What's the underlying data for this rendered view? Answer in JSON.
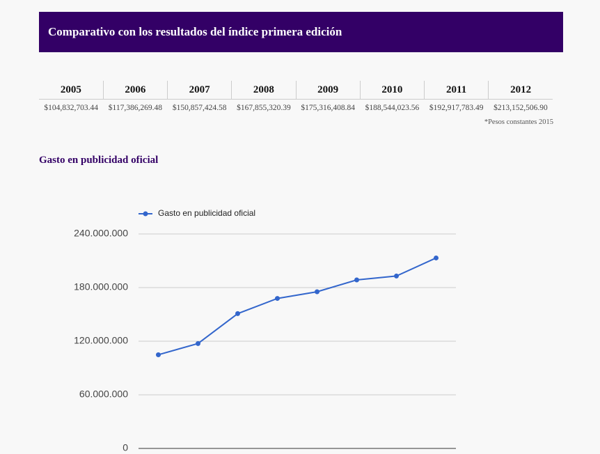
{
  "header": {
    "title": "Comparativo con los resultados del índice primera edición"
  },
  "table": {
    "headers": [
      "2005",
      "2006",
      "2007",
      "2008",
      "2009",
      "2010",
      "2011",
      "2012"
    ],
    "rows": [
      [
        "$104,832,703.44",
        "$117,386,269.48",
        "$150,857,424.58",
        "$167,855,320.39",
        "$175,316,408.84",
        "$188,544,023.56",
        "$192,917,783.49",
        "$213,152,506.90"
      ]
    ],
    "note": "*Pesos constantes 2015"
  },
  "chart_data": {
    "type": "line",
    "title": "Gasto en publicidad oficial",
    "series": [
      {
        "name": "Gasto en publicidad oficial",
        "color": "#3366cc",
        "values": [
          104832703.44,
          117386269.48,
          150857424.58,
          167855320.39,
          175316408.84,
          188544023.56,
          192917783.49,
          213152506.9
        ]
      }
    ],
    "ylim": [
      0,
      240000000
    ],
    "yticks": [
      0,
      {
        "value": 60000000,
        "label": "60.000.000"
      },
      {
        "value": 120000000,
        "label": "120.000.000"
      },
      {
        "value": 180000000,
        "label": "180.000.000"
      },
      {
        "value": 240000000,
        "label": "240.000.000"
      }
    ],
    "grid": true,
    "legend": "top"
  }
}
